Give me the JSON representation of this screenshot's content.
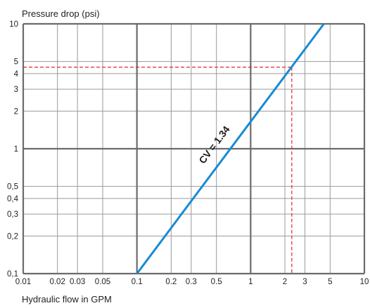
{
  "chart_data": {
    "type": "line",
    "x_scale": "log",
    "y_scale": "log",
    "xlim": [
      0.01,
      10
    ],
    "ylim": [
      0.1,
      10
    ],
    "ylabel": "Pressure drop (psi)",
    "xlabel": "Hydraulic flow in GPM",
    "x_ticks": [
      {
        "value": 0.01,
        "label": "0.01"
      },
      {
        "value": 0.02,
        "label": "0.02"
      },
      {
        "value": 0.03,
        "label": "0.03"
      },
      {
        "value": 0.05,
        "label": "0.05"
      },
      {
        "value": 0.1,
        "label": "0.1"
      },
      {
        "value": 0.2,
        "label": "0.2"
      },
      {
        "value": 0.3,
        "label": "0.3"
      },
      {
        "value": 0.5,
        "label": "0.5"
      },
      {
        "value": 1,
        "label": "1"
      },
      {
        "value": 2,
        "label": "2"
      },
      {
        "value": 3,
        "label": "3"
      },
      {
        "value": 5,
        "label": "5"
      },
      {
        "value": 10,
        "label": "10"
      }
    ],
    "y_ticks": [
      {
        "value": 0.1,
        "label": "0,1"
      },
      {
        "value": 0.2,
        "label": "0,2"
      },
      {
        "value": 0.3,
        "label": "0,3"
      },
      {
        "value": 0.4,
        "label": "0,4"
      },
      {
        "value": 0.5,
        "label": "0,5"
      },
      {
        "value": 1,
        "label": "1"
      },
      {
        "value": 2,
        "label": "2"
      },
      {
        "value": 3,
        "label": "3"
      },
      {
        "value": 4,
        "label": "4"
      },
      {
        "value": 5,
        "label": "5"
      },
      {
        "value": 10,
        "label": "10"
      }
    ],
    "major_gridlines_x": [
      0.01,
      0.1,
      1,
      10
    ],
    "major_gridlines_y": [
      0.1,
      1,
      10
    ],
    "grid": true,
    "series": [
      {
        "name": "CV = 1.34",
        "color": "#1a8ad4",
        "x": [
          0.1,
          4.4
        ],
        "y": [
          0.1,
          10
        ]
      }
    ],
    "reference_lines": {
      "color": "#e0262b",
      "x": 2.3,
      "y": 4.5
    }
  }
}
